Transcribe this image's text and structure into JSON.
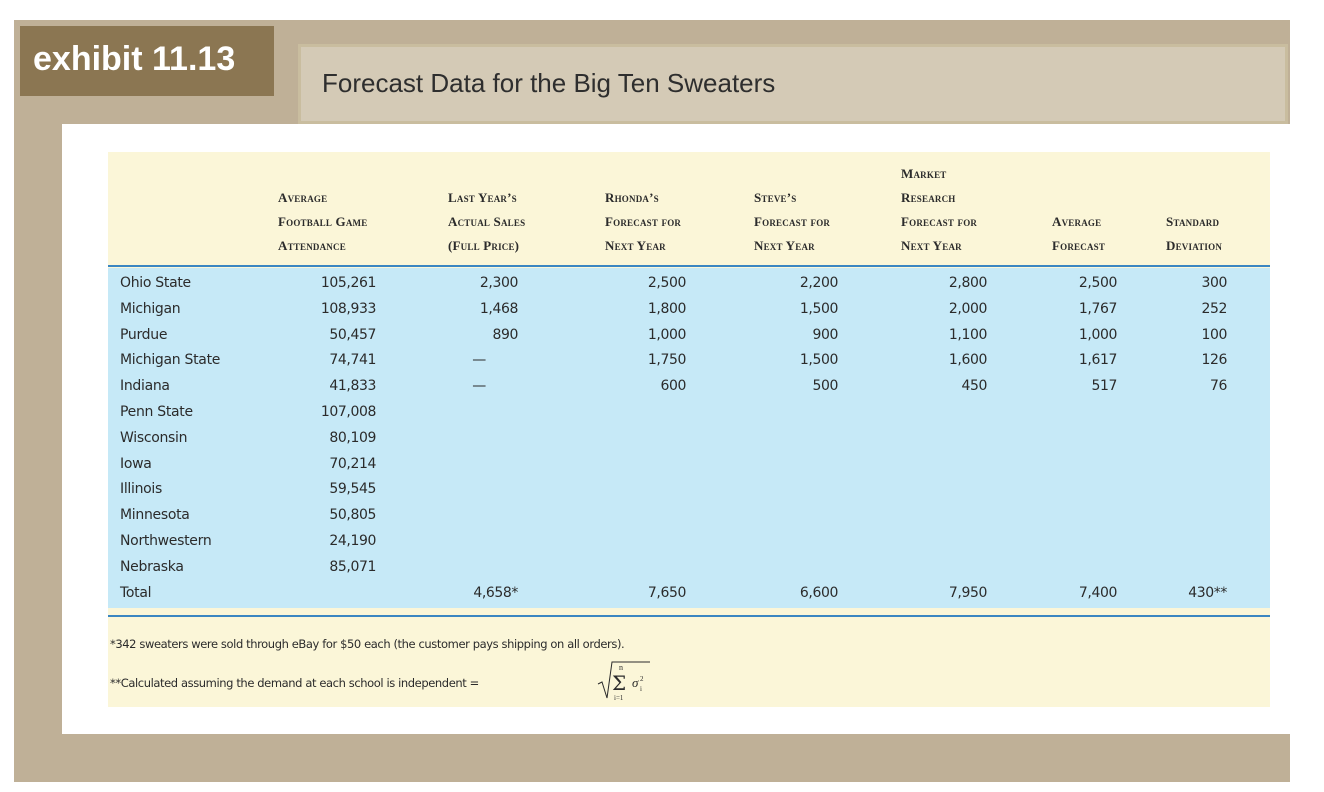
{
  "exhibit_label": "exhibit 11.13",
  "title": "Forecast Data for the Big Ten Sweaters",
  "headers": [
    [
      "Average",
      "Football Game",
      "Attendance"
    ],
    [
      "Last Year’s",
      "Actual Sales",
      "(Full Price)"
    ],
    [
      "Rhonda’s",
      "Forecast for",
      "Next Year"
    ],
    [
      "Steve’s",
      "Forecast for",
      "Next Year"
    ],
    [
      "Market",
      "Research",
      "Forecast for",
      "Next Year"
    ],
    [
      "Average",
      "Forecast"
    ],
    [
      "Standard",
      "Deviation"
    ]
  ],
  "rows": [
    {
      "school": "Ohio State",
      "attendance": "105,261",
      "last_year": "2,300",
      "rhonda": "2,500",
      "steve": "2,200",
      "market": "2,800",
      "average": "2,500",
      "std": "300"
    },
    {
      "school": "Michigan",
      "attendance": "108,933",
      "last_year": "1,468",
      "rhonda": "1,800",
      "steve": "1,500",
      "market": "2,000",
      "average": "1,767",
      "std": "252"
    },
    {
      "school": "Purdue",
      "attendance": "50,457",
      "last_year": "890",
      "rhonda": "1,000",
      "steve": "900",
      "market": "1,100",
      "average": "1,000",
      "std": "100"
    },
    {
      "school": "Michigan State",
      "attendance": "74,741",
      "last_year": "—",
      "rhonda": "1,750",
      "steve": "1,500",
      "market": "1,600",
      "average": "1,617",
      "std": "126"
    },
    {
      "school": "Indiana",
      "attendance": "41,833",
      "last_year": "—",
      "rhonda": "600",
      "steve": "500",
      "market": "450",
      "average": "517",
      "std": "76"
    },
    {
      "school": "Penn State",
      "attendance": "107,008"
    },
    {
      "school": "Wisconsin",
      "attendance": "80,109"
    },
    {
      "school": "Iowa",
      "attendance": "70,214"
    },
    {
      "school": "Illinois",
      "attendance": "59,545"
    },
    {
      "school": "Minnesota",
      "attendance": "50,805"
    },
    {
      "school": "Northwestern",
      "attendance": "24,190"
    },
    {
      "school": "Nebraska",
      "attendance": "85,071"
    }
  ],
  "total": {
    "label": "Total",
    "last_year": "4,658*",
    "rhonda": "7,650",
    "steve": "6,600",
    "market": "7,950",
    "average": "7,400",
    "std": "430**"
  },
  "footnotes": [
    "*342 sweaters were sold through eBay for $50 each (the customer pays shipping on all orders).",
    "**Calculated assuming the demand at each school is independent ="
  ],
  "formula": {
    "sigma": "Σ",
    "n": "n",
    "i": "i=1",
    "term": "σ",
    "term_sub": "i",
    "term_sup": "2"
  },
  "colors": {
    "frame": "#bfb097",
    "badge": "#8b7652",
    "title_band": "#d4cab6",
    "table_bg": "#fbf6d8",
    "body_bg": "#c6e9f7",
    "rule": "#3b86c1"
  }
}
